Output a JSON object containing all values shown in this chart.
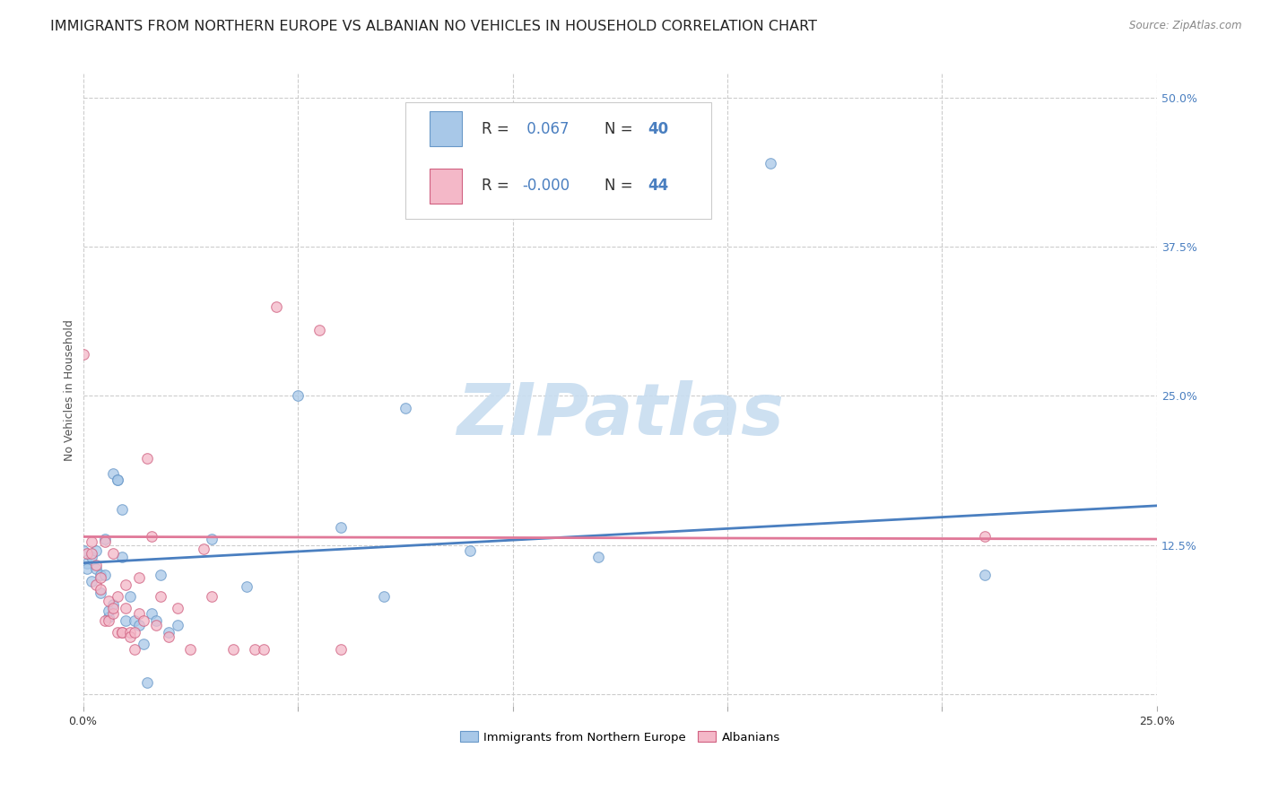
{
  "title": "IMMIGRANTS FROM NORTHERN EUROPE VS ALBANIAN NO VEHICLES IN HOUSEHOLD CORRELATION CHART",
  "source": "Source: ZipAtlas.com",
  "ylabel": "No Vehicles in Household",
  "legend_label_blue": "Immigrants from Northern Europe",
  "legend_label_pink": "Albanians",
  "R_blue": "0.067",
  "N_blue": "40",
  "R_pink": "-0.000",
  "N_pink": "44",
  "blue_color": "#a8c8e8",
  "pink_color": "#f4b8c8",
  "blue_line_color": "#4a7fc0",
  "pink_line_color": "#e07898",
  "blue_edge_color": "#6898c8",
  "pink_edge_color": "#d06080",
  "background_color": "#ffffff",
  "watermark": "ZIPatlas",
  "blue_scatter_x": [
    0.0,
    0.001,
    0.001,
    0.002,
    0.002,
    0.003,
    0.003,
    0.004,
    0.004,
    0.005,
    0.005,
    0.006,
    0.006,
    0.007,
    0.007,
    0.008,
    0.008,
    0.009,
    0.009,
    0.01,
    0.011,
    0.012,
    0.013,
    0.014,
    0.015,
    0.016,
    0.017,
    0.018,
    0.02,
    0.022,
    0.03,
    0.038,
    0.05,
    0.06,
    0.07,
    0.075,
    0.09,
    0.12,
    0.16,
    0.21
  ],
  "blue_scatter_y": [
    0.12,
    0.11,
    0.105,
    0.115,
    0.095,
    0.105,
    0.12,
    0.085,
    0.1,
    0.1,
    0.13,
    0.065,
    0.07,
    0.075,
    0.185,
    0.18,
    0.18,
    0.115,
    0.155,
    0.062,
    0.082,
    0.062,
    0.058,
    0.042,
    0.01,
    0.068,
    0.062,
    0.1,
    0.052,
    0.058,
    0.13,
    0.09,
    0.25,
    0.14,
    0.082,
    0.24,
    0.12,
    0.115,
    0.445,
    0.1
  ],
  "pink_scatter_x": [
    0.0,
    0.001,
    0.002,
    0.002,
    0.003,
    0.003,
    0.004,
    0.004,
    0.005,
    0.005,
    0.006,
    0.006,
    0.007,
    0.007,
    0.007,
    0.008,
    0.008,
    0.009,
    0.009,
    0.01,
    0.01,
    0.011,
    0.011,
    0.012,
    0.012,
    0.013,
    0.013,
    0.014,
    0.015,
    0.016,
    0.017,
    0.018,
    0.02,
    0.022,
    0.025,
    0.028,
    0.03,
    0.035,
    0.04,
    0.042,
    0.045,
    0.055,
    0.06,
    0.21
  ],
  "pink_scatter_y": [
    0.285,
    0.118,
    0.118,
    0.128,
    0.108,
    0.092,
    0.098,
    0.088,
    0.062,
    0.128,
    0.062,
    0.078,
    0.068,
    0.072,
    0.118,
    0.082,
    0.052,
    0.052,
    0.052,
    0.092,
    0.072,
    0.052,
    0.048,
    0.038,
    0.052,
    0.098,
    0.068,
    0.062,
    0.198,
    0.132,
    0.058,
    0.082,
    0.048,
    0.072,
    0.038,
    0.122,
    0.082,
    0.038,
    0.038,
    0.038,
    0.325,
    0.305,
    0.038,
    0.132
  ],
  "xlim": [
    0.0,
    0.25
  ],
  "ylim": [
    -0.01,
    0.52
  ],
  "blue_trend_x": [
    0.0,
    0.25
  ],
  "blue_trend_y": [
    0.11,
    0.158
  ],
  "pink_trend_x": [
    0.0,
    0.25
  ],
  "pink_trend_y": [
    0.132,
    0.13
  ],
  "xticks": [
    0.0,
    0.05,
    0.1,
    0.15,
    0.2,
    0.25
  ],
  "xtick_labels_show": [
    "0.0%",
    "25.0%"
  ],
  "yticks_right": [
    0.125,
    0.25,
    0.375,
    0.5
  ],
  "ytick_labels_right": [
    "12.5%",
    "25.0%",
    "37.5%",
    "50.0%"
  ],
  "grid_color": "#cccccc",
  "title_fontsize": 11.5,
  "axis_label_fontsize": 9,
  "tick_fontsize": 9,
  "legend_fontsize": 12,
  "scatter_size": 70,
  "scatter_alpha": 0.75,
  "scatter_linewidth": 0.8,
  "watermark_color": "#c8ddf0",
  "watermark_fontsize": 58
}
